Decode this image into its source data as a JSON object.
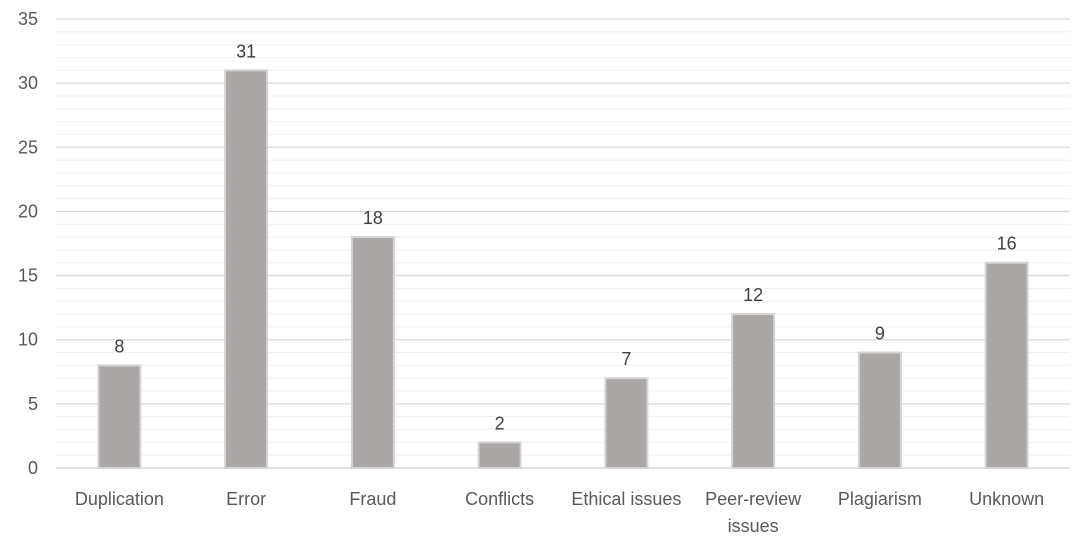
{
  "chart_data": {
    "type": "bar",
    "categories": [
      "Duplication",
      "Error",
      "Fraud",
      "Conflicts",
      "Ethical issues",
      "Peer-review issues",
      "Plagiarism",
      "Unknown"
    ],
    "category_lines": [
      [
        "Duplication"
      ],
      [
        "Error"
      ],
      [
        "Fraud"
      ],
      [
        "Conflicts"
      ],
      [
        "Ethical issues"
      ],
      [
        "Peer-review",
        "issues"
      ],
      [
        "Plagiarism"
      ],
      [
        "Unknown"
      ]
    ],
    "values": [
      8,
      31,
      18,
      2,
      7,
      12,
      9,
      16
    ],
    "data_labels": [
      "8",
      "31",
      "18",
      "2",
      "7",
      "12",
      "9",
      "16"
    ],
    "y_ticks": [
      "0",
      "5",
      "10",
      "15",
      "20",
      "25",
      "30",
      "35"
    ],
    "ylim": [
      0,
      35
    ],
    "major_step": 5,
    "minor_step": 1,
    "grid": true,
    "legend": "none",
    "title": "",
    "xlabel": "",
    "ylabel": ""
  },
  "colors": {
    "bar_fill": "#aba7a6",
    "bar_stroke": "#d6d4d3",
    "major_grid": "#d9d9d9",
    "minor_grid": "#f0f0f0",
    "text": "#595959",
    "axis": "#d9d9d9"
  }
}
